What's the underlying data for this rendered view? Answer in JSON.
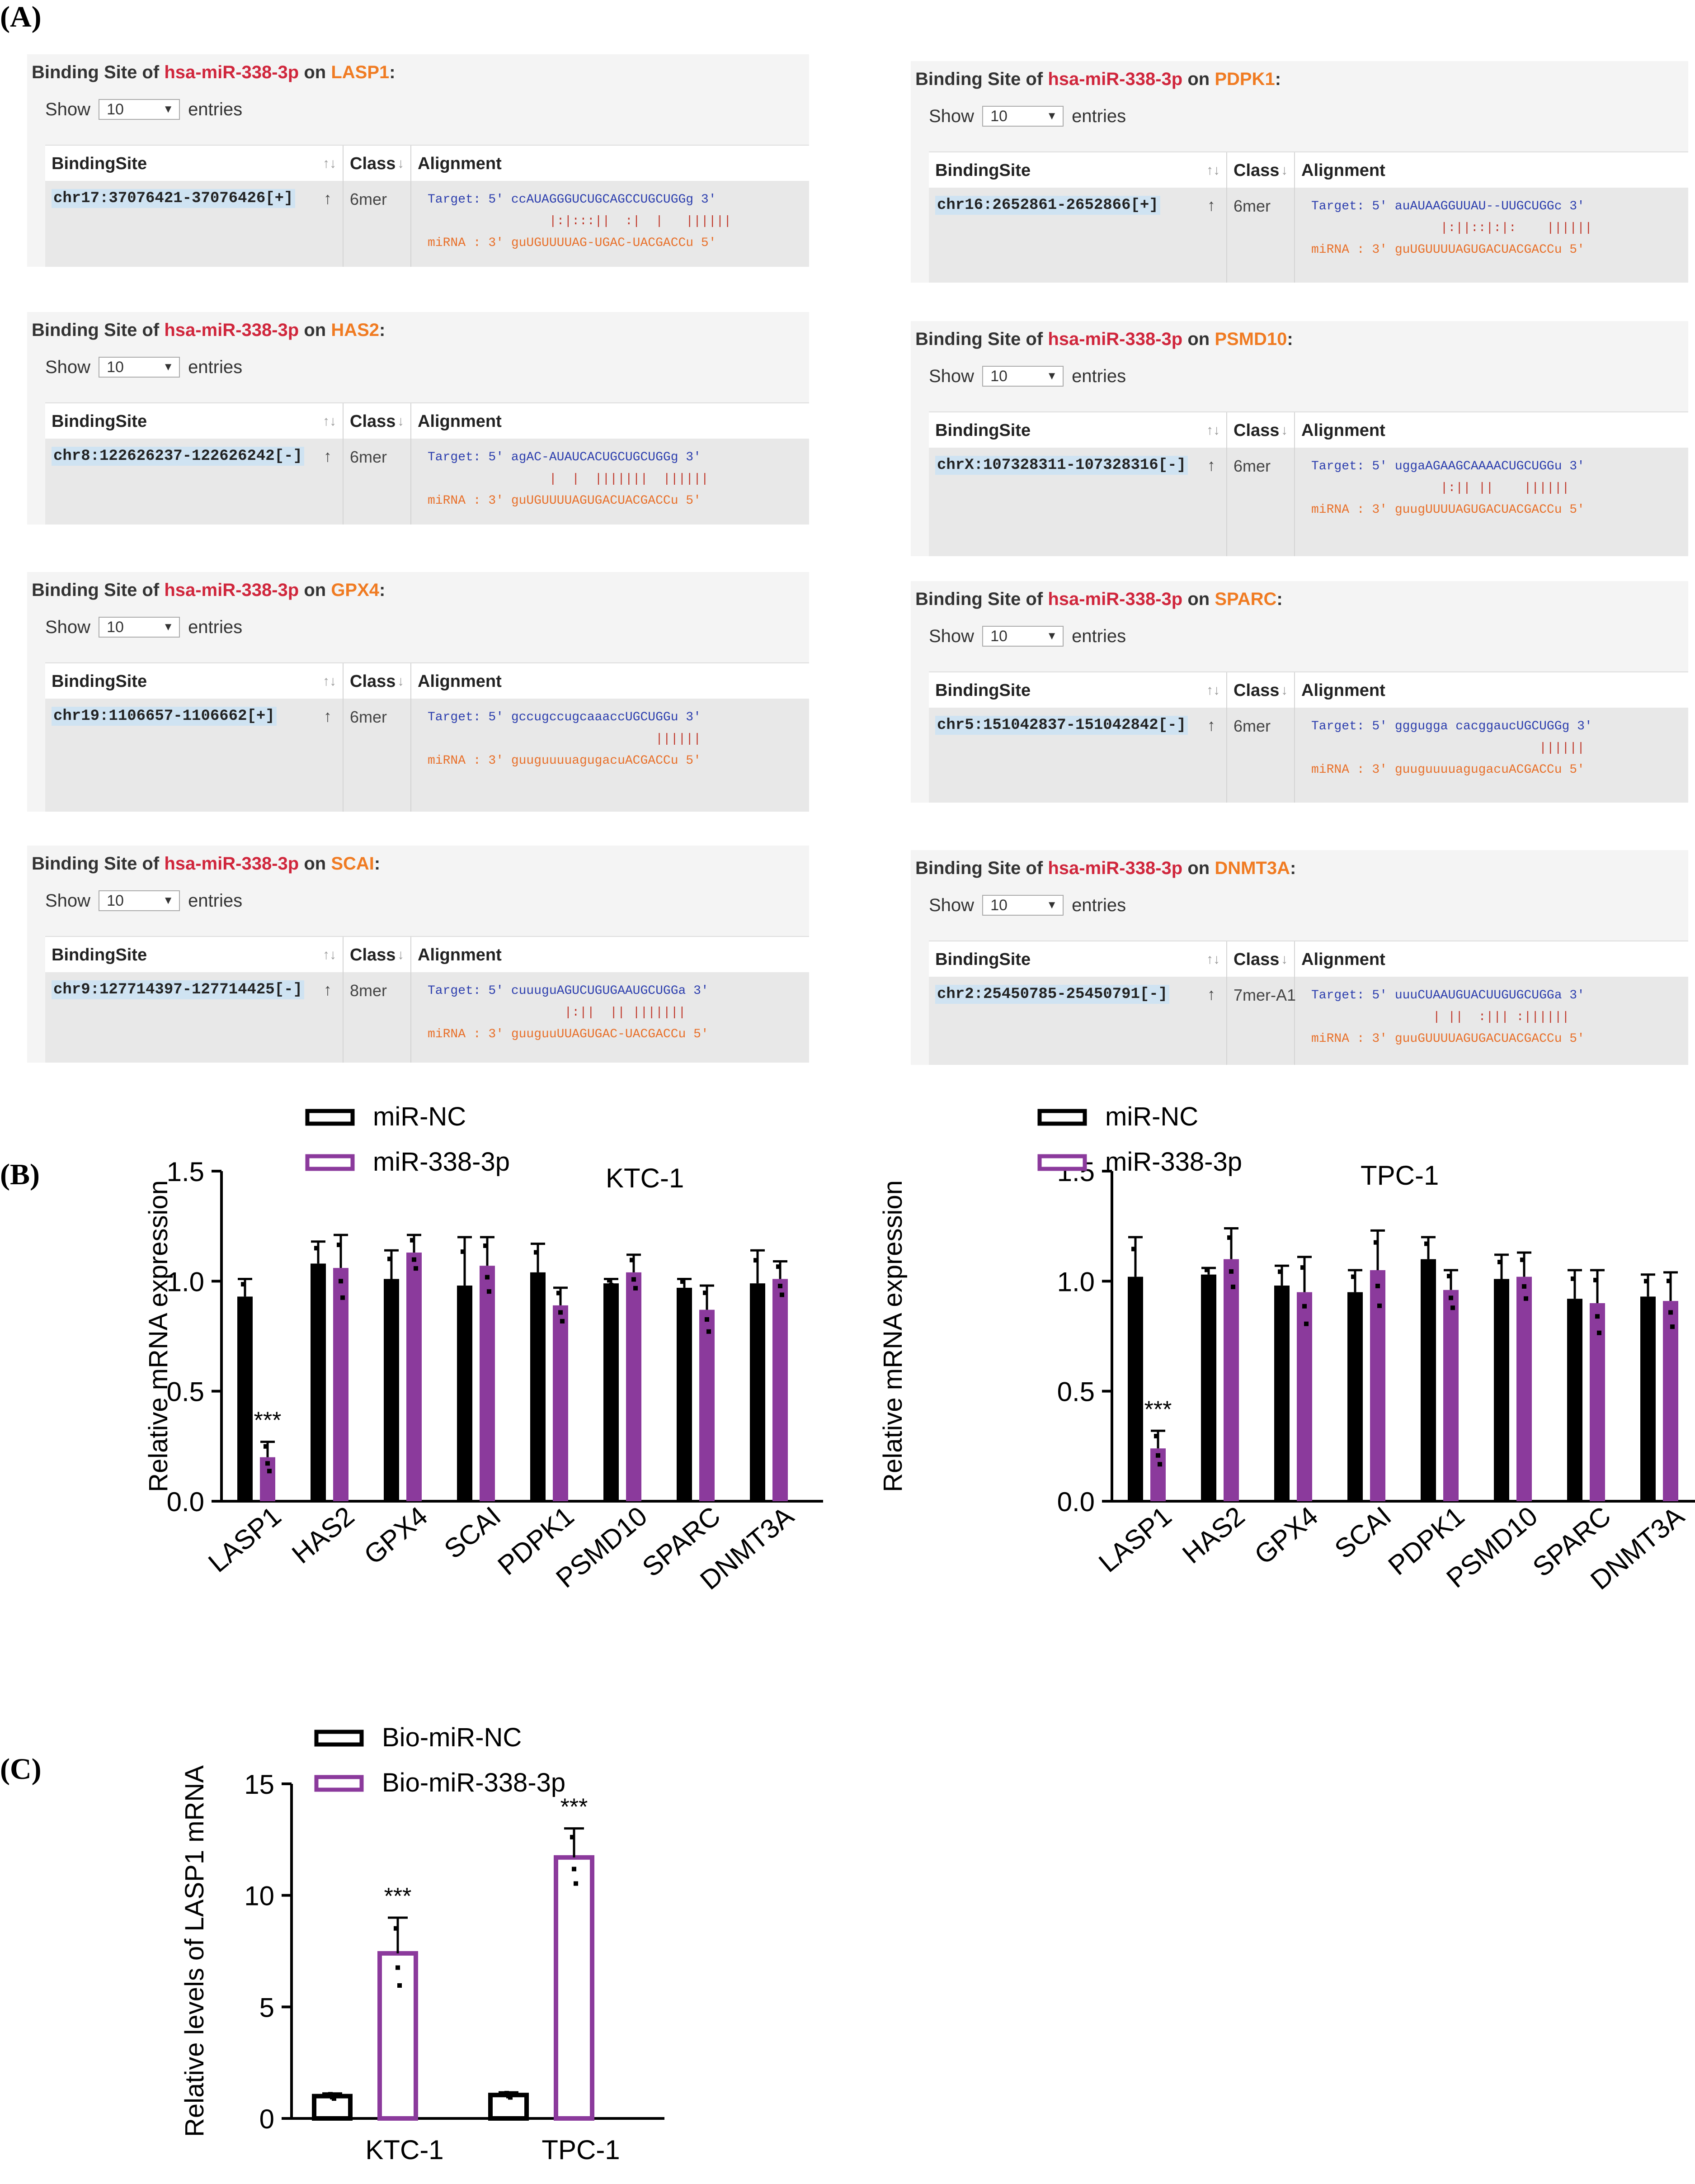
{
  "labels": {
    "A": "(A)",
    "B": "(B)",
    "C": "(C)"
  },
  "ui": {
    "title_prefix": "Binding Site of",
    "title_on": "on",
    "title_colon": ":",
    "mirna": "hsa-miR-338-3p",
    "show": "Show",
    "show_value": "10",
    "entries": "entries",
    "col_site": "BindingSite",
    "col_class": "Class",
    "col_alignment": "Alignment",
    "sort_icon": "updown-arrows-icon",
    "row_arrow": "up-arrow-icon"
  },
  "panels": [
    {
      "gene": "LASP1",
      "site": "chr17:37076421-37076426[+]",
      "cls": "6mer",
      "target": "Target: 5' ccAUAGGGUCUGCAGCCUGCUGGg 3'",
      "bars": "                |:|:::||  :|  |   ||||||",
      "mirna": "miRNA : 3' guUGUUUUAG-UGAC-UACGACCu 5'"
    },
    {
      "gene": "PDPK1",
      "site": "chr16:2652861-2652866[+]",
      "cls": "6mer",
      "target": "Target: 5' auAUAAGGUUAU--UUGCUGGc 3'",
      "bars": "                 |:||::|:|:    ||||||",
      "mirna": "miRNA : 3' guUGUUUUAGUGACUACGACCu 5'"
    },
    {
      "gene": "HAS2",
      "site": "chr8:122626237-122626242[-]",
      "cls": "6mer",
      "target": "Target: 5' agAC-AUAUCACUGCUGCUGGg 3'",
      "bars": "                |  |  |||||||  ||||||",
      "mirna": "miRNA : 3' guUGUUUUAGUGACUACGACCu 5'"
    },
    {
      "gene": "PSMD10",
      "site": "chrX:107328311-107328316[-]",
      "cls": "6mer",
      "target": "Target: 5' uggaAGAAGCAAAACUGCUGGu 3'",
      "bars": "                 |:|| ||    ||||||",
      "mirna": "miRNA : 3' guugUUUUAGUGACUACGACCu 5'"
    },
    {
      "gene": "GPX4",
      "site": "chr19:1106657-1106662[+]",
      "cls": "6mer",
      "target": "Target: 5' gccugccugcaaaccUGCUGGu 3'",
      "bars": "                              ||||||",
      "mirna": "miRNA : 3' guuguuuuagugacuACGACCu 5'"
    },
    {
      "gene": "SPARC",
      "site": "chr5:151042837-151042842[-]",
      "cls": "6mer",
      "target": "Target: 5' gggugga cacggaucUGCUGGg 3'",
      "bars": "                              ||||||",
      "mirna": "miRNA : 3' guuguuuuagugacuACGACCu 5'"
    },
    {
      "gene": "SCAI",
      "site": "chr9:127714397-127714425[-]",
      "cls": "8mer",
      "target": "Target: 5' cuuuguAGUCUGUGAAUGCUGGa 3'",
      "bars": "                  |:||  || |||||||",
      "mirna": "miRNA : 3' guuguuUUAGUGAC-UACGACCu 5'"
    },
    {
      "gene": "DNMT3A",
      "site": "chr2:25450785-25450791[-]",
      "cls": "7mer-A1",
      "target": "Target: 5' uuuCUAAUGUACUUGUGCUGGa 3'",
      "bars": "                | ||  :||| :||||||",
      "mirna": "miRNA : 3' guuGUUUUAGUGACUACGACCu 5'"
    }
  ],
  "chart_data": [
    {
      "type": "bar",
      "title": "KTC-1",
      "ylabel": "Relative mRNA expression",
      "xlabel": "",
      "ylim": [
        0,
        1.5
      ],
      "yticks": [
        "0.0",
        "0.5",
        "1.0",
        "1.5"
      ],
      "categories": [
        "LASP1",
        "HAS2",
        "GPX4",
        "SCAI",
        "PDPK1",
        "PSMD10",
        "SPARC",
        "DNMT3A"
      ],
      "series": [
        {
          "name": "miR-NC",
          "values": [
            0.93,
            1.08,
            1.01,
            0.98,
            1.04,
            0.99,
            0.97,
            0.99
          ],
          "errors": [
            0.08,
            0.1,
            0.13,
            0.22,
            0.13,
            0.02,
            0.04,
            0.15
          ]
        },
        {
          "name": "miR-338-3p",
          "values": [
            0.2,
            1.06,
            1.13,
            1.07,
            0.89,
            1.04,
            0.87,
            1.01
          ],
          "errors": [
            0.07,
            0.15,
            0.08,
            0.13,
            0.08,
            0.08,
            0.11,
            0.08
          ]
        }
      ],
      "annotations": [
        {
          "category": "LASP1",
          "text": "***"
        }
      ]
    },
    {
      "type": "bar",
      "title": "TPC-1",
      "ylabel": "Relative mRNA expression",
      "xlabel": "",
      "ylim": [
        0,
        1.5
      ],
      "yticks": [
        "0.0",
        "0.5",
        "1.0",
        "1.5"
      ],
      "categories": [
        "LASP1",
        "HAS2",
        "GPX4",
        "SCAI",
        "PDPK1",
        "PSMD10",
        "SPARC",
        "DNMT3A"
      ],
      "series": [
        {
          "name": "miR-NC",
          "values": [
            1.02,
            1.03,
            0.98,
            0.95,
            1.1,
            1.01,
            0.92,
            0.93
          ],
          "errors": [
            0.18,
            0.03,
            0.09,
            0.1,
            0.1,
            0.11,
            0.13,
            0.1
          ]
        },
        {
          "name": "miR-338-3p",
          "values": [
            0.24,
            1.1,
            0.95,
            1.05,
            0.96,
            1.02,
            0.9,
            0.91
          ],
          "errors": [
            0.08,
            0.14,
            0.16,
            0.18,
            0.09,
            0.11,
            0.15,
            0.13
          ]
        }
      ],
      "annotations": [
        {
          "category": "LASP1",
          "text": "***"
        }
      ]
    },
    {
      "type": "bar",
      "title": "",
      "ylabel": "Relative levels of LASP1 mRNA",
      "xlabel": "",
      "ylim": [
        0,
        15
      ],
      "yticks": [
        "0",
        "5",
        "10",
        "15"
      ],
      "categories": [
        "KTC-1",
        "TPC-1"
      ],
      "series": [
        {
          "name": "Bio-miR-NC",
          "values": [
            1.0,
            1.05
          ],
          "errors": [
            0.12,
            0.12
          ]
        },
        {
          "name": "Bio-miR-338-3p",
          "values": [
            7.4,
            11.7
          ],
          "errors": [
            1.6,
            1.3
          ]
        }
      ],
      "annotations": [
        {
          "category": "KTC-1",
          "text": "***"
        },
        {
          "category": "TPC-1",
          "text": "***"
        }
      ]
    }
  ],
  "colors": {
    "nc": "#000000",
    "treat": "#8b3a9c",
    "mirna": "#d0263c",
    "gene": "#f07b22",
    "target": "#2d3fae",
    "mirna_line": "#e8702a"
  }
}
